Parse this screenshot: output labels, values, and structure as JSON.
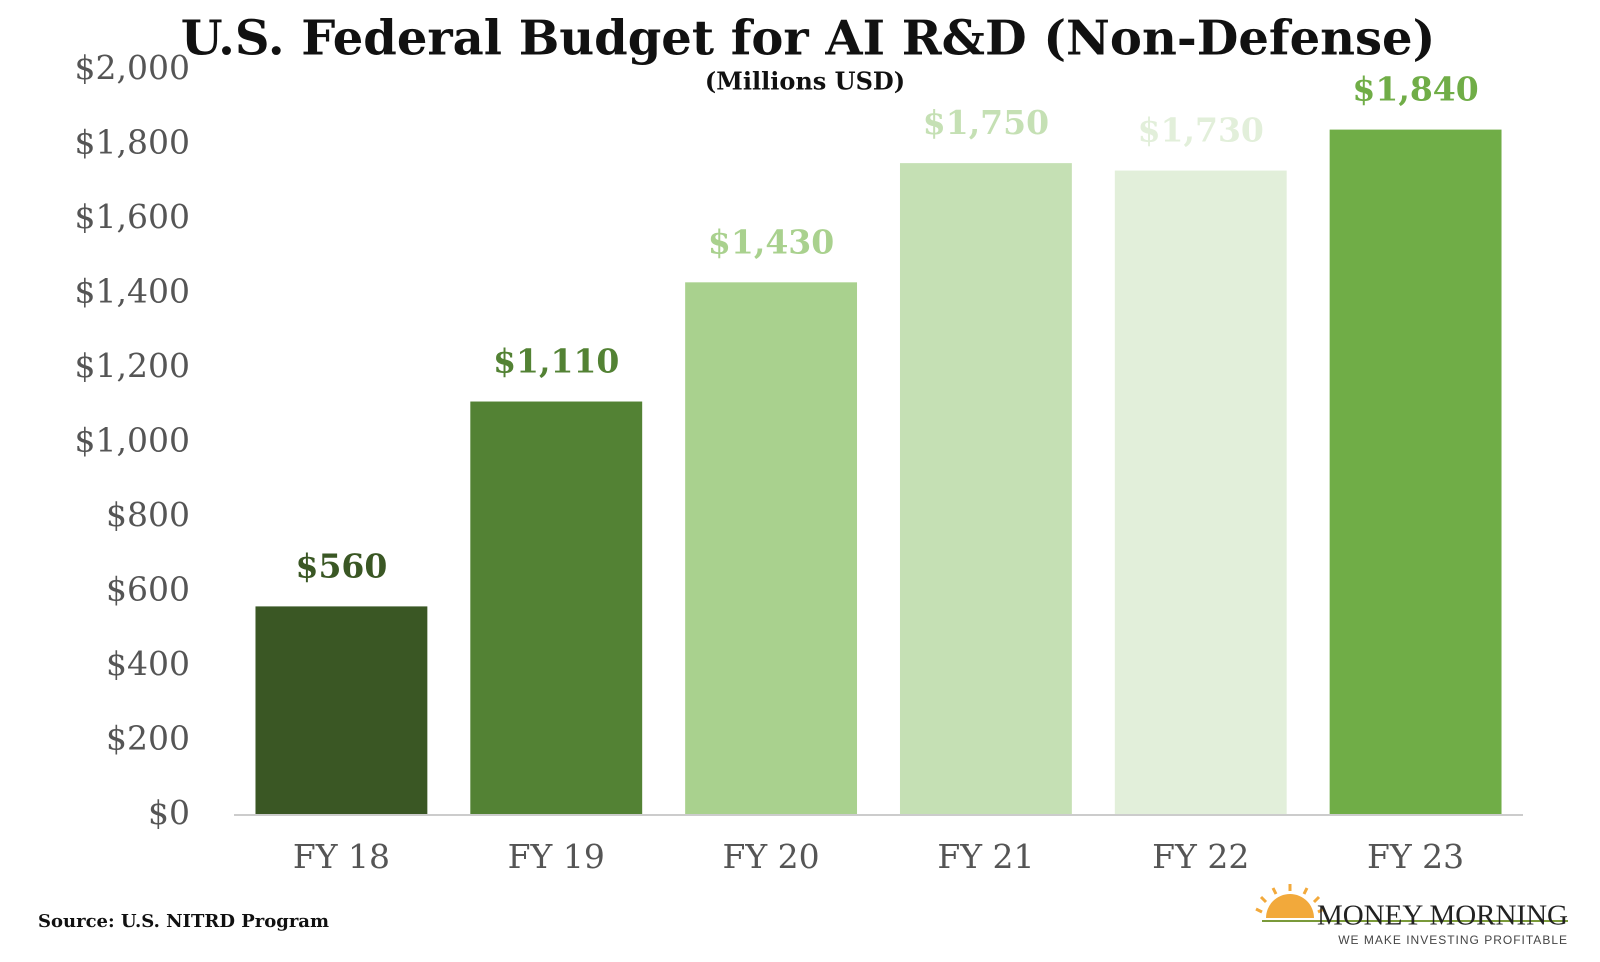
{
  "chart_data": {
    "type": "bar",
    "title": "U.S. Federal Budget for AI R&D (Non-Defense)",
    "subtitle": "(Millions USD)",
    "categories": [
      "FY 18",
      "FY 19",
      "FY 20",
      "FY 21",
      "FY 22",
      "FY 23"
    ],
    "values": [
      560,
      1110,
      1430,
      1750,
      1730,
      1840
    ],
    "value_labels": [
      "$560",
      "$1,110",
      "$1,430",
      "$1,750",
      "$1,730",
      "$1,840"
    ],
    "colors": [
      "#3a5724",
      "#538234",
      "#a9d18e",
      "#c5e0b4",
      "#e2efda",
      "#70ad47"
    ],
    "ylim": [
      0,
      2000
    ],
    "yticks": [
      {
        "value": 0,
        "label": "$0"
      },
      {
        "value": 200,
        "label": "$200"
      },
      {
        "value": 400,
        "label": "$400"
      },
      {
        "value": 600,
        "label": "$600"
      },
      {
        "value": 800,
        "label": "$800"
      },
      {
        "value": 1000,
        "label": "$1,000"
      },
      {
        "value": 1200,
        "label": "$1,200"
      },
      {
        "value": 1400,
        "label": "$1,400"
      },
      {
        "value": 1600,
        "label": "$1,600"
      },
      {
        "value": 1800,
        "label": "$1,800"
      },
      {
        "value": 2000,
        "label": "$2,000"
      }
    ],
    "grid": false,
    "source": "Source: U.S. NITRD Program"
  },
  "logo": {
    "name": "MONEY MORNING",
    "tagline": "WE MAKE INVESTING PROFITABLE"
  }
}
